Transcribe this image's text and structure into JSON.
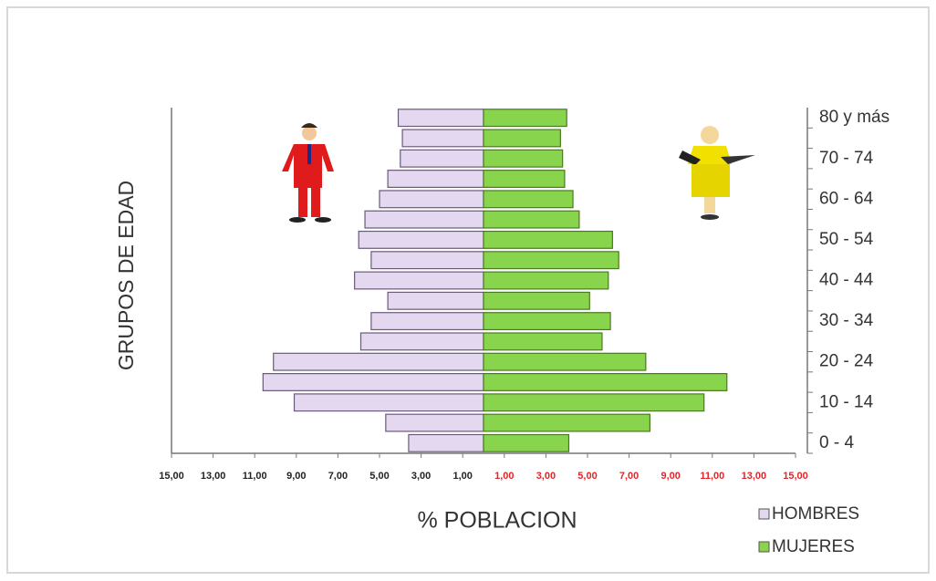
{
  "chart_data": {
    "type": "pyramid",
    "y_axis_title": "GRUPOS DE EDAD",
    "x_axis_title": "% POBLACION",
    "categories": [
      "0 - 4",
      null,
      "10 - 14",
      null,
      "20 - 24",
      null,
      "30 - 34",
      null,
      "40 - 44",
      null,
      "50 - 54",
      null,
      "60 - 64",
      null,
      "70 - 74",
      null,
      "80 y más"
    ],
    "series": [
      {
        "name": "HOMBRES",
        "color": "#e4d8f0",
        "side": "left",
        "values": [
          3.6,
          4.7,
          9.1,
          10.6,
          10.1,
          5.9,
          5.4,
          4.6,
          6.2,
          5.4,
          6.0,
          5.7,
          5.0,
          4.6,
          4.0,
          3.9,
          4.1
        ]
      },
      {
        "name": "MUJERES",
        "color": "#88d44c",
        "side": "right",
        "values": [
          4.1,
          8.0,
          10.6,
          11.7,
          7.8,
          5.7,
          6.1,
          5.1,
          6.0,
          6.5,
          6.2,
          4.6,
          4.3,
          3.9,
          3.8,
          3.7,
          4.0
        ]
      }
    ],
    "xlim": [
      0,
      15
    ],
    "xticks": [
      {
        "value": 1,
        "label": "1,00"
      },
      {
        "value": 3,
        "label": "3,00"
      },
      {
        "value": 5,
        "label": "5,00"
      },
      {
        "value": 7,
        "label": "7,00"
      },
      {
        "value": 9,
        "label": "9,00"
      },
      {
        "value": 11,
        "label": "11,00"
      },
      {
        "value": 13,
        "label": "13,00"
      },
      {
        "value": 15,
        "label": "15,00"
      }
    ],
    "left_tick_color": "#222222",
    "right_tick_color": "#e0262a"
  }
}
